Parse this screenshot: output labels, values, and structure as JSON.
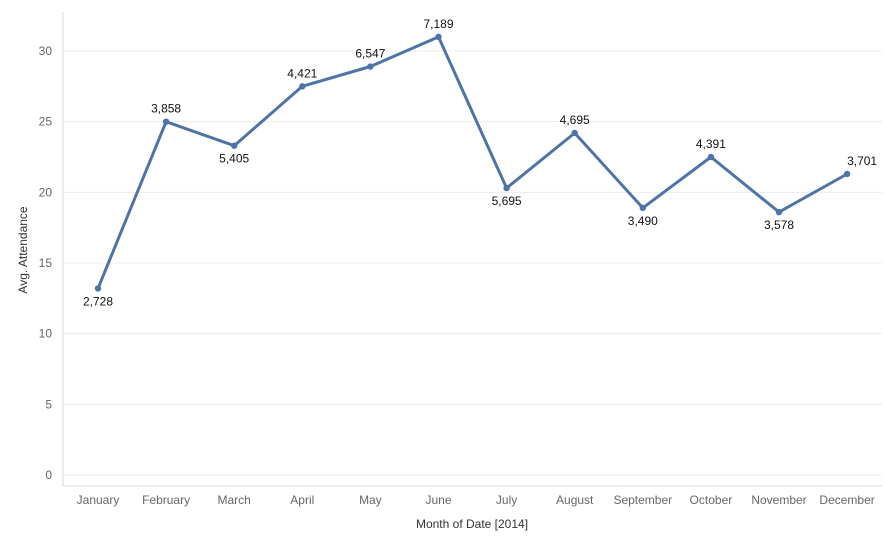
{
  "chart_data": {
    "type": "line",
    "xlabel": "Month of Date [2014]",
    "ylabel": "Avg. Attendance",
    "categories": [
      "January",
      "February",
      "March",
      "April",
      "May",
      "June",
      "July",
      "August",
      "September",
      "October",
      "November",
      "December"
    ],
    "series": [
      {
        "values": [
          13.2,
          25.0,
          23.3,
          27.5,
          28.9,
          31.0,
          20.3,
          24.2,
          18.9,
          22.5,
          18.6,
          21.3
        ],
        "labels": [
          "2,728",
          "3,858",
          "5,405",
          "4,421",
          "6,547",
          "7,189",
          "5,695",
          "4,695",
          "3,490",
          "4,391",
          "3,578",
          "3,701"
        ],
        "color": "#4e74a6"
      }
    ],
    "yticks": [
      0,
      5,
      10,
      15,
      20,
      25,
      30
    ],
    "ylim": [
      0,
      33
    ],
    "grid": true,
    "legend": "none"
  }
}
